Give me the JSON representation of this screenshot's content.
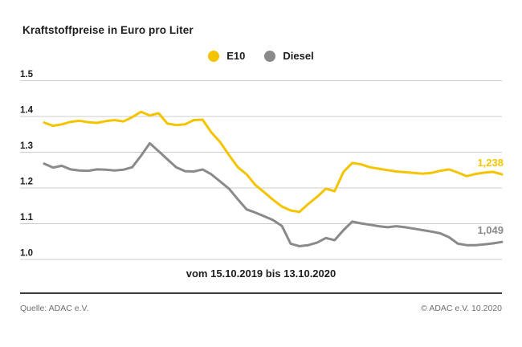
{
  "title": "Kraftstoffpreise in Euro pro Liter",
  "footer": {
    "source": "Quelle: ADAC e.V.",
    "copyright": "© ADAC e.V. 10.2020"
  },
  "colors": {
    "e10": "#F5C400",
    "diesel": "#8A8A8A",
    "gridline": "#CCCCCC",
    "text": "#1D1D1B",
    "footer_text": "#706F6F"
  },
  "chart_data": {
    "type": "line",
    "title": "Kraftstoffpreise in Euro pro Liter",
    "xlabel": "vom 15.10.2019 bis 13.10.2020",
    "ylabel": "Euro pro Liter",
    "ylim": [
      0.95,
      1.55
    ],
    "yticks": [
      1.0,
      1.1,
      1.2,
      1.3,
      1.4,
      1.5
    ],
    "grid": "horizontal",
    "legend_position": "top-center",
    "x_unit": "weekly values from 15.10.2019 to 13.10.2020",
    "series": [
      {
        "name": "E10",
        "color": "#F5C400",
        "end_label": "1,238",
        "end_value": 1.238,
        "values": [
          1.383,
          1.374,
          1.378,
          1.385,
          1.388,
          1.384,
          1.382,
          1.387,
          1.39,
          1.386,
          1.398,
          1.413,
          1.403,
          1.409,
          1.38,
          1.376,
          1.378,
          1.39,
          1.391,
          1.355,
          1.328,
          1.292,
          1.258,
          1.238,
          1.208,
          1.188,
          1.167,
          1.148,
          1.137,
          1.133,
          1.155,
          1.175,
          1.198,
          1.191,
          1.245,
          1.27,
          1.266,
          1.258,
          1.254,
          1.25,
          1.246,
          1.244,
          1.242,
          1.24,
          1.242,
          1.248,
          1.252,
          1.243,
          1.233,
          1.239,
          1.243,
          1.245,
          1.238
        ]
      },
      {
        "name": "Diesel",
        "color": "#8A8A8A",
        "end_label": "1,049",
        "end_value": 1.049,
        "values": [
          1.268,
          1.257,
          1.262,
          1.252,
          1.249,
          1.248,
          1.252,
          1.251,
          1.249,
          1.251,
          1.258,
          1.29,
          1.325,
          1.303,
          1.28,
          1.258,
          1.247,
          1.246,
          1.252,
          1.238,
          1.218,
          1.198,
          1.168,
          1.14,
          1.131,
          1.121,
          1.11,
          1.094,
          1.044,
          1.037,
          1.04,
          1.047,
          1.06,
          1.054,
          1.082,
          1.106,
          1.101,
          1.097,
          1.093,
          1.09,
          1.093,
          1.09,
          1.086,
          1.082,
          1.078,
          1.073,
          1.062,
          1.044,
          1.04,
          1.04,
          1.042,
          1.045,
          1.049
        ]
      }
    ]
  }
}
